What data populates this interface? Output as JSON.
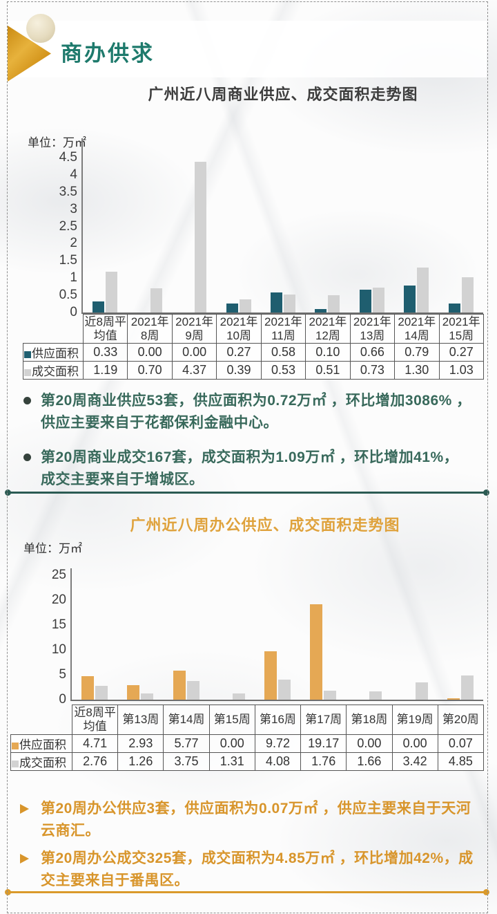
{
  "header": {
    "title": "商办供求"
  },
  "chart_data": [
    {
      "type": "bar",
      "title": "广州近八周商业供应、成交面积走势图",
      "unit_label": "单位：万㎡",
      "categories": [
        "近8周平均值",
        "2021年8周",
        "2021年9周",
        "2021年10周",
        "2021年11周",
        "2021年12周",
        "2021年13周",
        "2021年14周",
        "2021年15周"
      ],
      "series": [
        {
          "name": "供应面积",
          "color": "#1f5e6f",
          "values": [
            0.33,
            0.0,
            0.0,
            0.27,
            0.58,
            0.1,
            0.66,
            0.79,
            0.27
          ]
        },
        {
          "name": "成交面积",
          "color": "#d2d2d2",
          "values": [
            1.19,
            0.7,
            4.37,
            0.39,
            0.53,
            0.51,
            0.73,
            1.3,
            1.03
          ]
        }
      ],
      "ylim": [
        0,
        5
      ],
      "yticks": [
        0,
        0.5,
        1,
        1.5,
        2,
        2.5,
        3,
        3.5,
        4,
        4.5
      ],
      "grid": false,
      "legend_position": "table-left"
    },
    {
      "type": "bar",
      "title": "广州近八周办公供应、成交面积走势图",
      "unit_label": "单位：万㎡",
      "categories": [
        "近8周平均值",
        "第13周",
        "第14周",
        "第15周",
        "第16周",
        "第17周",
        "第18周",
        "第19周",
        "第20周"
      ],
      "series": [
        {
          "name": "供应面积",
          "color": "#e5a854",
          "values": [
            4.71,
            2.93,
            5.77,
            0.0,
            9.72,
            19.17,
            0.0,
            0.0,
            0.07
          ]
        },
        {
          "name": "成交面积",
          "color": "#d2d2d2",
          "values": [
            2.76,
            1.26,
            3.75,
            1.31,
            4.08,
            1.76,
            1.66,
            3.42,
            4.85
          ]
        }
      ],
      "ylim": [
        0,
        25
      ],
      "yticks": [
        0,
        5,
        10,
        15,
        20,
        25
      ],
      "grid": false,
      "legend_position": "table-left"
    }
  ],
  "commercial_notes": [
    "第20周商业供应53套，供应面积为0.72万㎡ ，环比增加3086% ，供应主要来自于花都保利金融中心。",
    "第20周商业成交167套，成交面积为1.09万㎡ ，环比增加41%，成交主要来自于增城区。"
  ],
  "office_notes": [
    "第20周办公供应3套，供应面积为0.07万㎡ ，供应主要来自于天河云商汇。",
    "第20周办公成交325套，成交面积为4.85万㎡ ，环比增加42%，成交主要来自于番禺区。"
  ],
  "colors": {
    "teal_accent": "#1e7a6c",
    "teal_text": "#38695b",
    "gold_accent": "#dfa23c",
    "gold_text": "#d8952b",
    "supply_bar_commercial": "#1f5e6f",
    "supply_bar_office": "#e5a854",
    "deal_bar": "#d2d2d2"
  }
}
